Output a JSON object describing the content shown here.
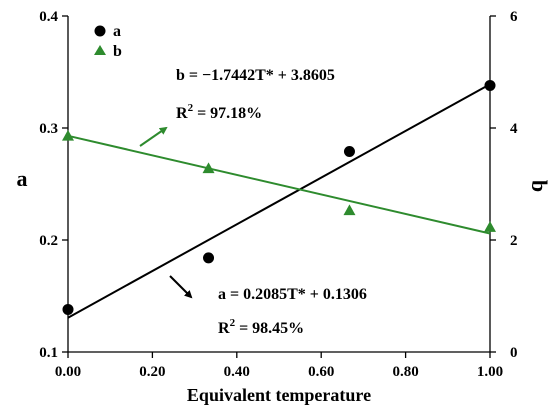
{
  "chart_data": {
    "type": "scatter",
    "xlabel": "Equivalent temperature",
    "ylabel_left": "a",
    "ylabel_right": "b",
    "xlim": [
      0,
      1
    ],
    "ylim_left": [
      0.1,
      0.4
    ],
    "ylim_right": [
      0,
      6
    ],
    "x_ticks": [
      "0.00",
      "0.20",
      "0.40",
      "0.60",
      "0.80",
      "1.00"
    ],
    "y_left_ticks": [
      "0.1",
      "0.2",
      "0.3",
      "0.4"
    ],
    "y_right_ticks": [
      "0",
      "2",
      "4",
      "6"
    ],
    "legend": {
      "placement": "top-left",
      "entries": [
        "a",
        "b"
      ]
    },
    "series": [
      {
        "name": "a",
        "axis": "left",
        "marker": "circle",
        "color": "#000000",
        "x": [
          0,
          0.333,
          0.667,
          1
        ],
        "y": [
          0.138,
          0.184,
          0.279,
          0.338
        ],
        "fit": {
          "slope": 0.2085,
          "intercept": 0.1306
        }
      },
      {
        "name": "b",
        "axis": "right",
        "marker": "triangle",
        "color": "#2e8b2e",
        "x": [
          0,
          0.333,
          0.667,
          1
        ],
        "y": [
          3.86,
          3.28,
          2.53,
          2.23
        ],
        "fit": {
          "slope": -1.7442,
          "intercept": 3.8605
        }
      }
    ],
    "annotations": [
      {
        "id": "b-eq",
        "text": "b = −1.7442T* + 3.8605"
      },
      {
        "id": "b-r2-base",
        "text": "R"
      },
      {
        "id": "b-r2-sup",
        "text": "2"
      },
      {
        "id": "b-r2-rest",
        "text": " = 97.18%"
      },
      {
        "id": "a-eq",
        "text": "a = 0.2085T* + 0.1306"
      },
      {
        "id": "a-r2-base",
        "text": "R"
      },
      {
        "id": "a-r2-sup",
        "text": "2"
      },
      {
        "id": "a-r2-rest",
        "text": " = 98.45%"
      }
    ]
  }
}
